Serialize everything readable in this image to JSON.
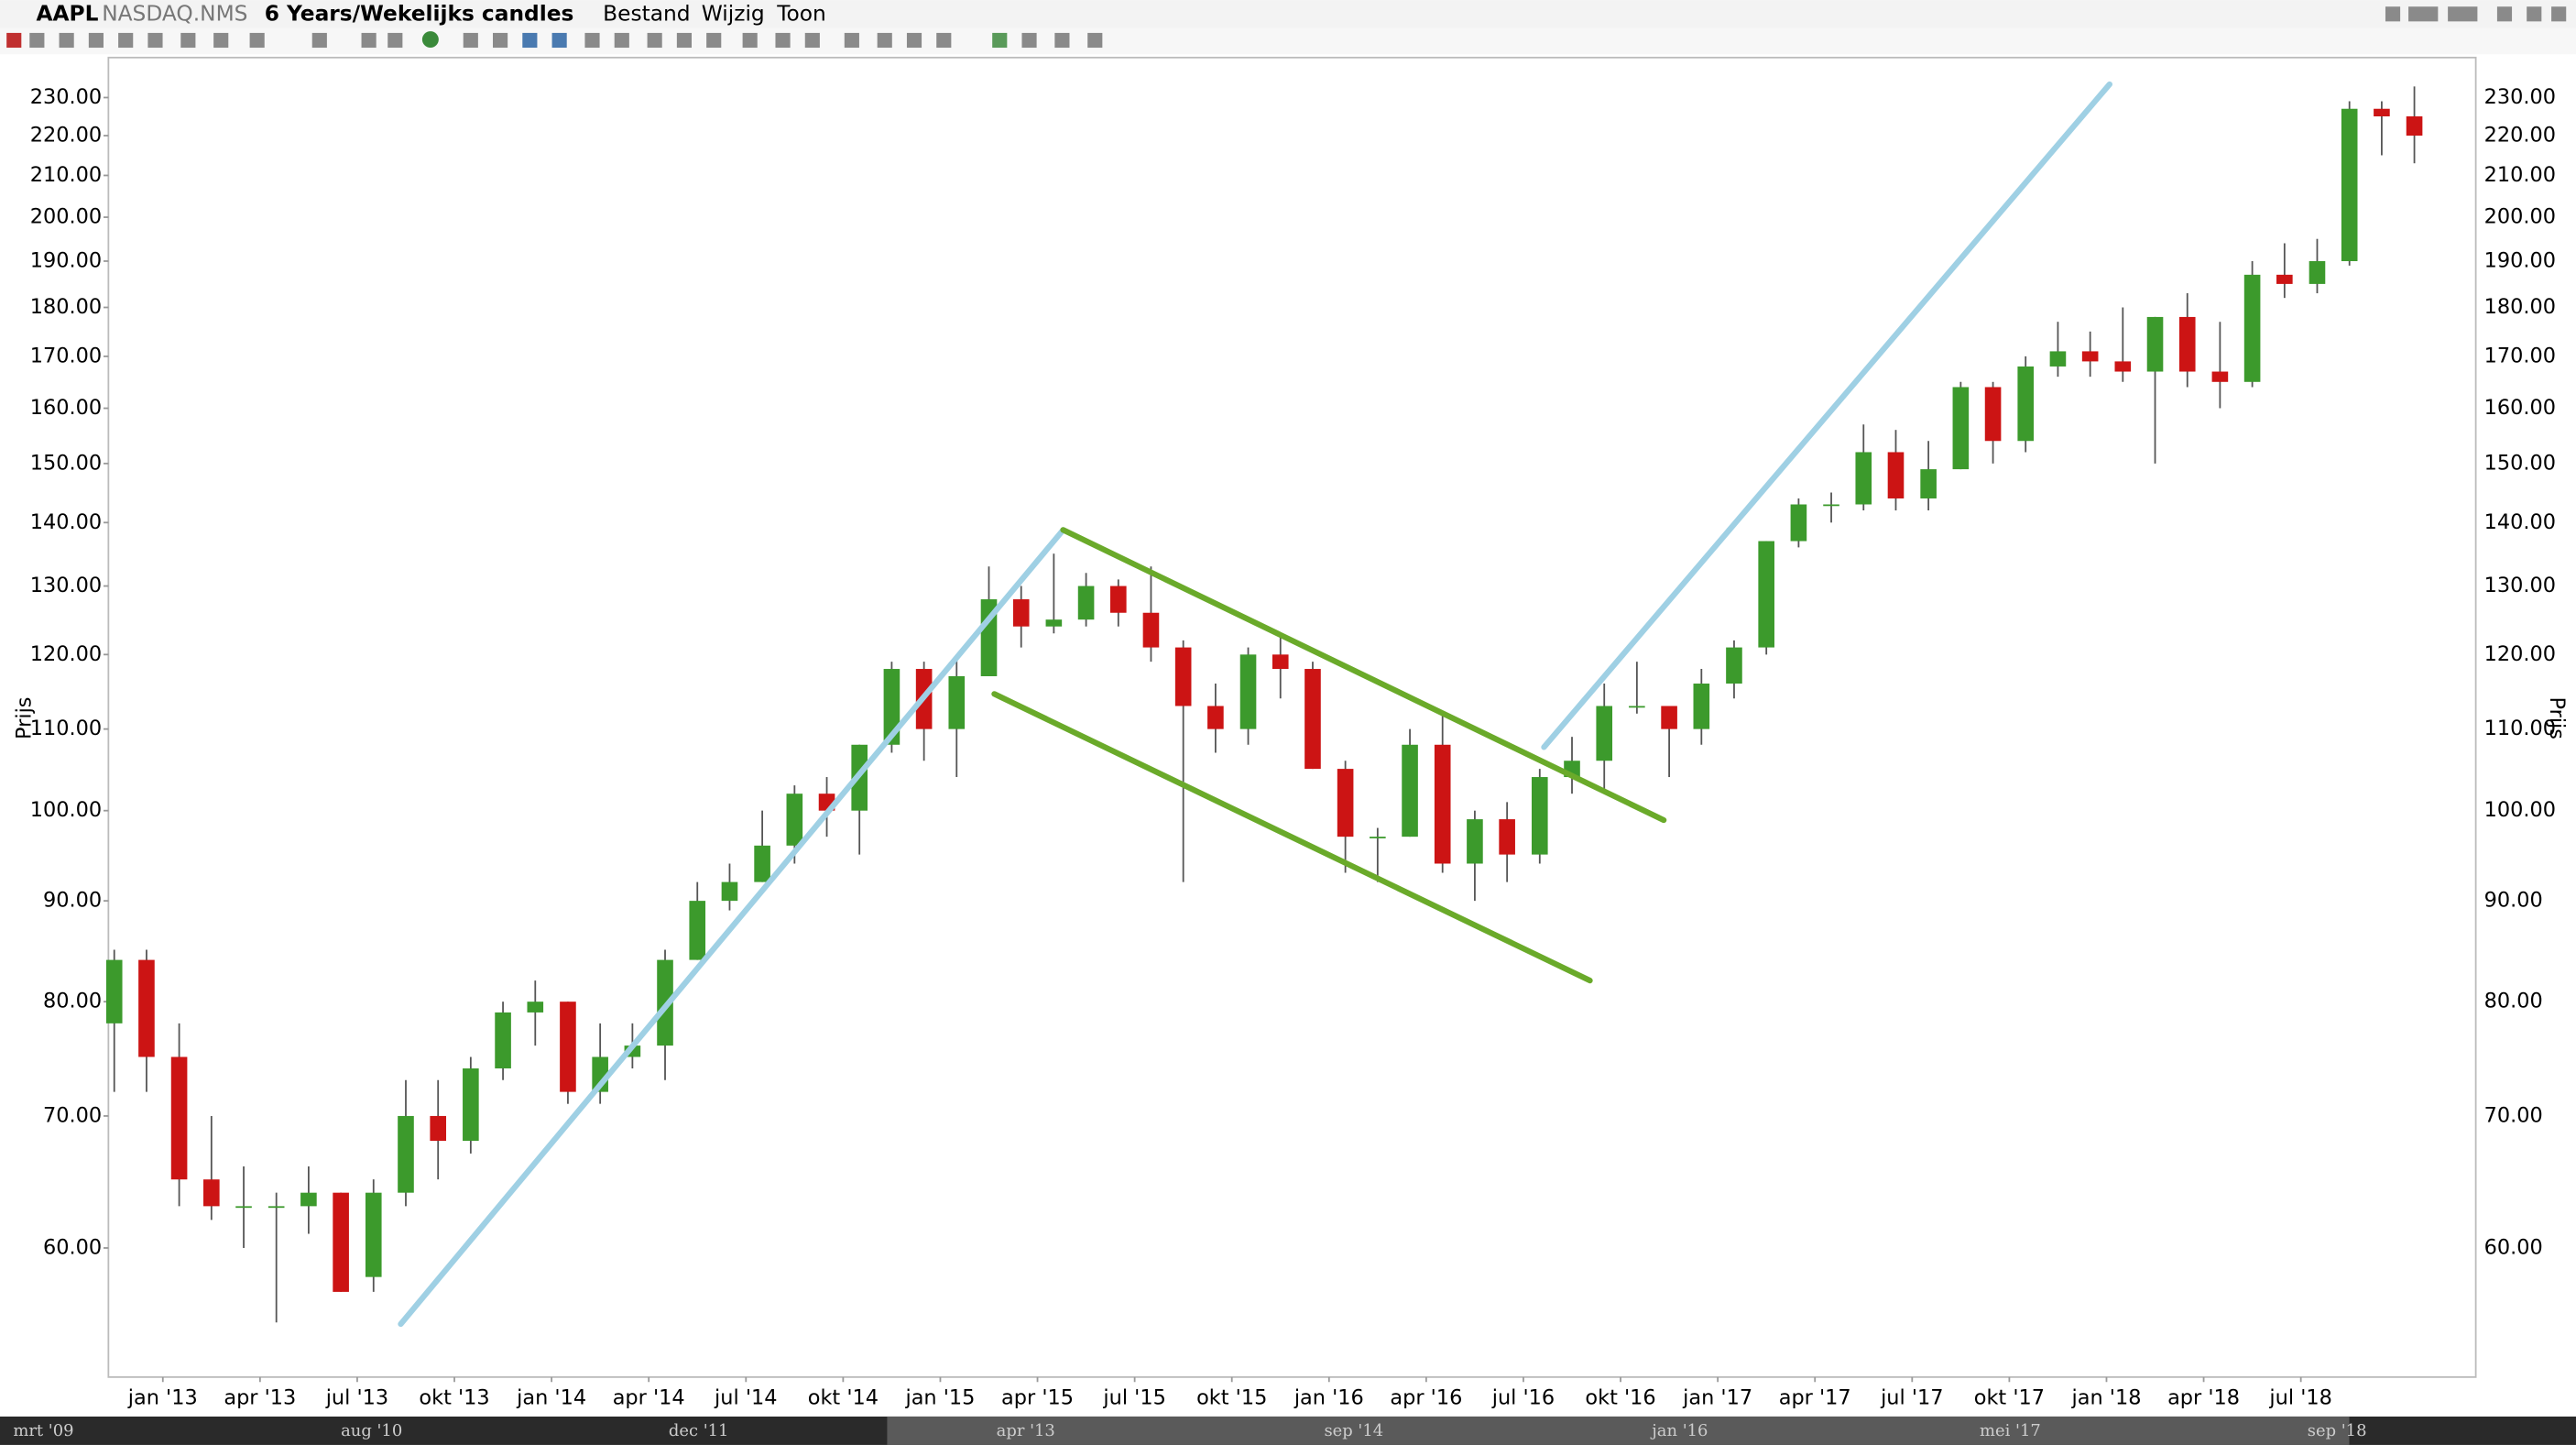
{
  "toolbar": {
    "symbol": "AAPL",
    "exchange": "NASDAQ.NMS",
    "period": "6 Years/Wekelijks candles",
    "menu": [
      "Bestand",
      "Wijzig",
      "Toon"
    ]
  },
  "chart_data": {
    "type": "candlestick",
    "y_label": "Prijs",
    "log_scale": true,
    "grid": false,
    "up_color": "#3c9a2c",
    "down_color": "#cc1414",
    "xlim": [
      2012.86,
      2018.95
    ],
    "ylim": [
      51.6,
      241
    ],
    "xticks": [
      {
        "value": 2013.0,
        "label": "jan '13"
      },
      {
        "value": 2013.25,
        "label": "apr '13"
      },
      {
        "value": 2013.5,
        "label": "jul '13"
      },
      {
        "value": 2013.75,
        "label": "okt '13"
      },
      {
        "value": 2014.0,
        "label": "jan '14"
      },
      {
        "value": 2014.25,
        "label": "apr '14"
      },
      {
        "value": 2014.5,
        "label": "jul '14"
      },
      {
        "value": 2014.75,
        "label": "okt '14"
      },
      {
        "value": 2015.0,
        "label": "jan '15"
      },
      {
        "value": 2015.25,
        "label": "apr '15"
      },
      {
        "value": 2015.5,
        "label": "jul '15"
      },
      {
        "value": 2015.75,
        "label": "okt '15"
      },
      {
        "value": 2016.0,
        "label": "jan '16"
      },
      {
        "value": 2016.25,
        "label": "apr '16"
      },
      {
        "value": 2016.5,
        "label": "jul '16"
      },
      {
        "value": 2016.75,
        "label": "okt '16"
      },
      {
        "value": 2017.0,
        "label": "jan '17"
      },
      {
        "value": 2017.25,
        "label": "apr '17"
      },
      {
        "value": 2017.5,
        "label": "jul '17"
      },
      {
        "value": 2017.75,
        "label": "okt '17"
      },
      {
        "value": 2018.0,
        "label": "jan '18"
      },
      {
        "value": 2018.25,
        "label": "apr '18"
      },
      {
        "value": 2018.5,
        "label": "jul '18"
      }
    ],
    "yticks": [
      {
        "value": 60,
        "label": "60.00"
      },
      {
        "value": 70,
        "label": "70.00"
      },
      {
        "value": 80,
        "label": "80.00"
      },
      {
        "value": 90,
        "label": "90.00"
      },
      {
        "value": 100,
        "label": "100.00"
      },
      {
        "value": 110,
        "label": "110.00"
      },
      {
        "value": 120,
        "label": "120.00"
      },
      {
        "value": 130,
        "label": "130.00"
      },
      {
        "value": 140,
        "label": "140.00"
      },
      {
        "value": 150,
        "label": "150.00"
      },
      {
        "value": 160,
        "label": "160.00"
      },
      {
        "value": 170,
        "label": "170.00"
      },
      {
        "value": 180,
        "label": "180.00"
      },
      {
        "value": 190,
        "label": "190.00"
      },
      {
        "value": 200,
        "label": "200.00"
      },
      {
        "value": 210,
        "label": "210.00"
      },
      {
        "value": 220,
        "label": "220.00"
      },
      {
        "value": 230,
        "label": "230.00"
      }
    ],
    "x": [
      2012.875,
      2012.958,
      2013.042,
      2013.125,
      2013.208,
      2013.292,
      2013.375,
      2013.458,
      2013.542,
      2013.625,
      2013.708,
      2013.792,
      2013.875,
      2013.958,
      2014.042,
      2014.125,
      2014.208,
      2014.292,
      2014.375,
      2014.458,
      2014.542,
      2014.625,
      2014.708,
      2014.792,
      2014.875,
      2014.958,
      2015.042,
      2015.125,
      2015.208,
      2015.292,
      2015.375,
      2015.458,
      2015.542,
      2015.625,
      2015.708,
      2015.792,
      2015.875,
      2015.958,
      2016.042,
      2016.125,
      2016.208,
      2016.292,
      2016.375,
      2016.458,
      2016.542,
      2016.625,
      2016.708,
      2016.792,
      2016.875,
      2016.958,
      2017.042,
      2017.125,
      2017.208,
      2017.292,
      2017.375,
      2017.458,
      2017.542,
      2017.625,
      2017.708,
      2017.792,
      2017.875,
      2017.958,
      2018.042,
      2018.125,
      2018.208,
      2018.292,
      2018.375,
      2018.458,
      2018.542,
      2018.625,
      2018.708,
      2018.792
    ],
    "open": [
      78,
      84,
      75,
      65,
      63,
      63,
      63,
      64,
      58,
      64,
      70,
      68,
      74,
      79,
      80,
      72,
      75,
      76,
      84,
      90,
      92,
      96,
      102,
      100,
      108,
      118,
      110,
      117,
      128,
      124,
      125,
      130,
      126,
      121,
      113,
      110,
      120,
      118,
      105,
      97,
      97,
      108,
      94,
      99,
      95,
      104,
      106,
      113,
      113,
      110,
      116,
      121,
      137,
      143,
      143,
      152,
      144,
      149,
      164,
      154,
      168,
      171,
      169,
      167,
      178,
      167,
      165,
      187,
      185,
      190,
      227,
      225
    ],
    "high": [
      85,
      85,
      78,
      70,
      66,
      64,
      66,
      64,
      65,
      73,
      73,
      75,
      80,
      82,
      80,
      78,
      78,
      85,
      92,
      94,
      100,
      103,
      104,
      108,
      119,
      119,
      120,
      133,
      130,
      135,
      132,
      131,
      133,
      122,
      116,
      121,
      123,
      119,
      106,
      98,
      110,
      112,
      100,
      101,
      105,
      109,
      116,
      119,
      113,
      118,
      122,
      137,
      144,
      145,
      157,
      156,
      154,
      165,
      165,
      170,
      177,
      175,
      180,
      178,
      183,
      177,
      190,
      194,
      195,
      229,
      229,
      233
    ],
    "low": [
      72,
      72,
      63,
      62,
      60,
      55,
      61,
      57,
      57,
      63,
      65,
      67,
      73,
      76,
      71,
      71,
      74,
      73,
      84,
      89,
      92,
      94,
      97,
      95,
      107,
      106,
      104,
      117,
      121,
      123,
      124,
      124,
      119,
      92,
      107,
      108,
      114,
      105,
      93,
      92,
      97,
      93,
      90,
      92,
      94,
      102,
      102,
      112,
      104,
      108,
      114,
      120,
      136,
      140,
      142,
      142,
      142,
      149,
      150,
      152,
      166,
      166,
      165,
      150,
      164,
      160,
      164,
      182,
      183,
      189,
      215,
      213
    ],
    "close": [
      84,
      75,
      65,
      63,
      63,
      63,
      64,
      57,
      64,
      70,
      68,
      74,
      79,
      80,
      72,
      75,
      76,
      84,
      90,
      92,
      96,
      102,
      100,
      108,
      118,
      110,
      117,
      128,
      124,
      125,
      130,
      126,
      121,
      113,
      110,
      120,
      118,
      105,
      97,
      97,
      108,
      94,
      99,
      95,
      104,
      106,
      113,
      113,
      110,
      116,
      121,
      137,
      143,
      143,
      152,
      144,
      149,
      164,
      154,
      168,
      171,
      169,
      167,
      178,
      167,
      165,
      187,
      185,
      190,
      227,
      225,
      220
    ],
    "trendlines": [
      {
        "color": "#9fd0e4",
        "points": [
          [
            2013.612,
            54.9
          ],
          [
            2015.316,
            138.8
          ]
        ]
      },
      {
        "color": "#9fd0e4",
        "points": [
          [
            2016.553,
            107.7
          ],
          [
            2018.008,
            233.6
          ]
        ]
      },
      {
        "color": "#6aaa2a",
        "points": [
          [
            2015.316,
            138.8
          ],
          [
            2016.861,
            98.9
          ]
        ]
      },
      {
        "color": "#6aaa2a",
        "points": [
          [
            2015.139,
            114.6
          ],
          [
            2016.671,
            82.0
          ]
        ]
      }
    ]
  },
  "navigator": {
    "labels": [
      "mrt '09",
      "aug '10",
      "dec '11",
      "apr '13",
      "sep '14",
      "jan '16",
      "mei '17",
      "sep '18"
    ]
  }
}
